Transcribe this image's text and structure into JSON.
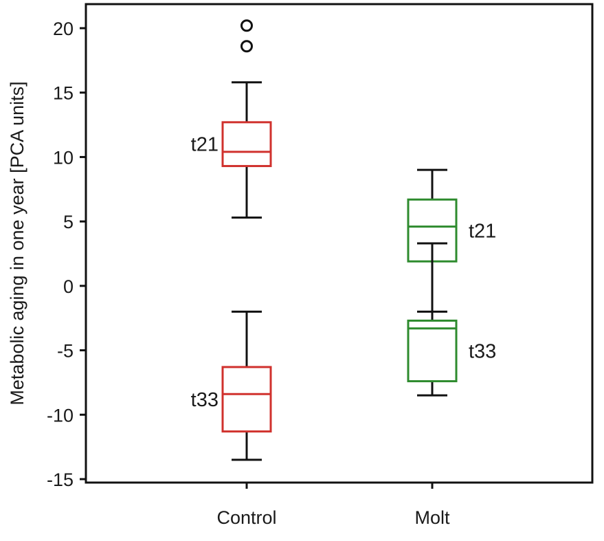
{
  "chart_data": {
    "type": "box",
    "title": "",
    "xlabel": "",
    "ylabel": "Metabolic aging in one year [PCA units]",
    "ylim": [
      -15,
      21
    ],
    "yticks": [
      20,
      15,
      10,
      5,
      0,
      -5,
      -10,
      -15
    ],
    "ytick_labels": [
      "20",
      "15",
      "10",
      "5",
      "0",
      "-5",
      "-10",
      "-15"
    ],
    "categories": [
      "Control",
      "Molt"
    ],
    "grid": false,
    "legend": "none",
    "boxes": [
      {
        "name": "control-t21",
        "category": "Control",
        "label": "t21",
        "label_side": "left",
        "color": "#d0312d",
        "whisker_low": 5.3,
        "q1": 9.3,
        "median": 10.4,
        "q3": 12.7,
        "whisker_high": 15.8,
        "outliers": [
          18.6,
          20.2
        ]
      },
      {
        "name": "control-t33",
        "category": "Control",
        "label": "t33",
        "label_side": "left",
        "color": "#d0312d",
        "whisker_low": -13.5,
        "q1": -11.3,
        "median": -8.4,
        "q3": -6.3,
        "whisker_high": -2.0,
        "outliers": []
      },
      {
        "name": "molt-t21",
        "category": "Molt",
        "label": "t21",
        "label_side": "right",
        "color": "#2e8b2e",
        "whisker_low": -2.0,
        "q1": 1.9,
        "median": 4.6,
        "q3": 6.7,
        "whisker_high": 9.0,
        "outliers": []
      },
      {
        "name": "molt-t33",
        "category": "Molt",
        "label": "t33",
        "label_side": "right",
        "color": "#2e8b2e",
        "whisker_low": -8.5,
        "q1": -7.4,
        "median": -3.3,
        "q3": -2.7,
        "whisker_high": 3.3,
        "outliers": []
      }
    ]
  }
}
